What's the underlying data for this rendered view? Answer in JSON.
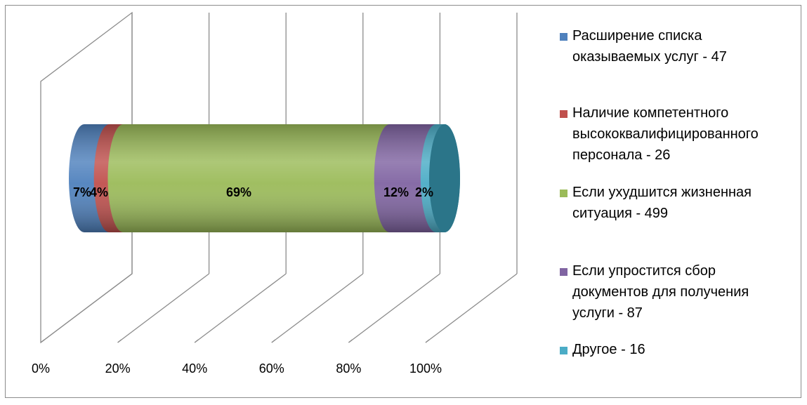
{
  "chart_data": {
    "type": "bar",
    "orientation": "horizontal",
    "stacked": "100%",
    "style": "3d-cylinder",
    "categories": [
      ""
    ],
    "series": [
      {
        "name": "Расширение списка оказываемых услуг - 47",
        "values": [
          47
        ],
        "label": "7%",
        "color": "#4f81bd"
      },
      {
        "name": "Наличие компетентного высококвалифицированного персонала - 26",
        "values": [
          26
        ],
        "label": "4%",
        "color": "#c0504d"
      },
      {
        "name": "Если ухудшится жизненная ситуация - 499",
        "values": [
          499
        ],
        "label": "69%",
        "color": "#9bbb59"
      },
      {
        "name": "Если упростится сбор документов для получения услуги - 87",
        "values": [
          87
        ],
        "label": "12%",
        "color": "#8064a2"
      },
      {
        "name": "Другое - 16",
        "values": [
          16
        ],
        "label": "2%",
        "color": "#4bacc6"
      }
    ],
    "x_ticks": [
      "0%",
      "20%",
      "40%",
      "60%",
      "80%",
      "100%"
    ],
    "xlim": [
      0,
      100
    ],
    "grid": true,
    "legend_position": "right",
    "title": "",
    "xlabel": "",
    "ylabel": ""
  }
}
